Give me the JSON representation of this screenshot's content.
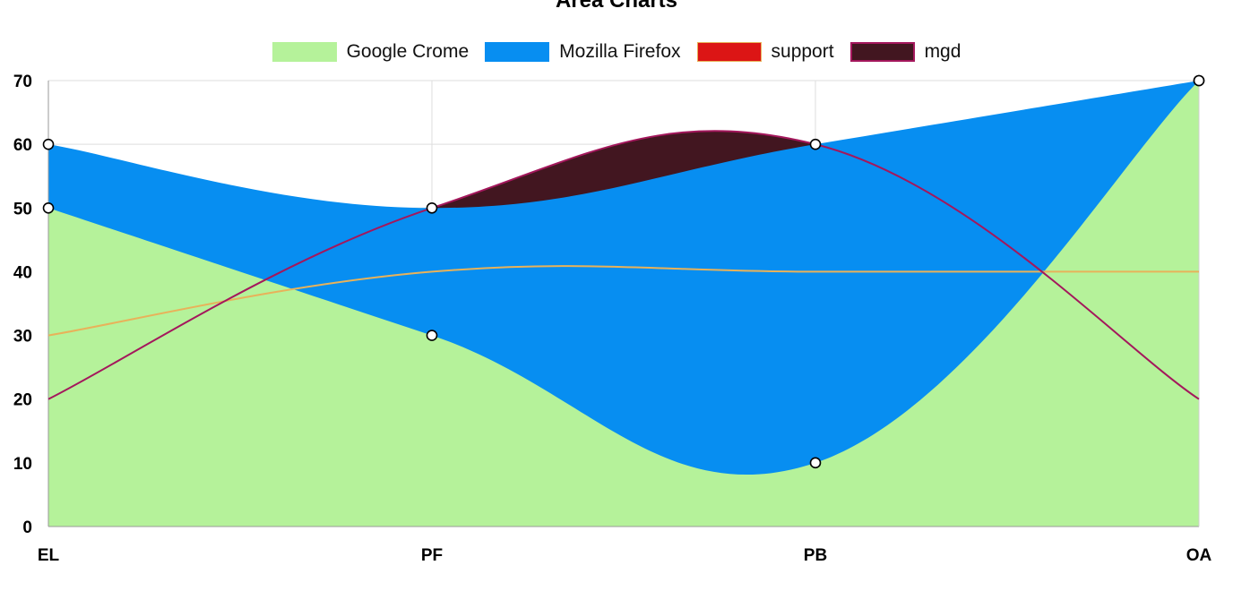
{
  "chart_data": {
    "type": "area",
    "title": "Area Charts",
    "categories": [
      "EL",
      "PF",
      "PB",
      "OA"
    ],
    "ylim": [
      0,
      70
    ],
    "yticks": [
      0,
      10,
      20,
      30,
      40,
      50,
      60,
      70
    ],
    "grid": true,
    "legend_position": "top",
    "series": [
      {
        "name": "Google Crome",
        "values": [
          50,
          30,
          10,
          70
        ],
        "color": "#b5f29a",
        "kind": "area"
      },
      {
        "name": "Mozilla Firefox",
        "values": [
          60,
          50,
          60,
          70
        ],
        "color": "#078ef1",
        "kind": "area"
      },
      {
        "name": "support",
        "values": [
          30,
          40,
          40,
          40
        ],
        "color": "#dc1515",
        "stroke": "#e8b25a",
        "kind": "line"
      },
      {
        "name": "mgd",
        "values": [
          20,
          50,
          60,
          20
        ],
        "color": "#421620",
        "stroke": "#a4175c",
        "kind": "line"
      }
    ]
  }
}
